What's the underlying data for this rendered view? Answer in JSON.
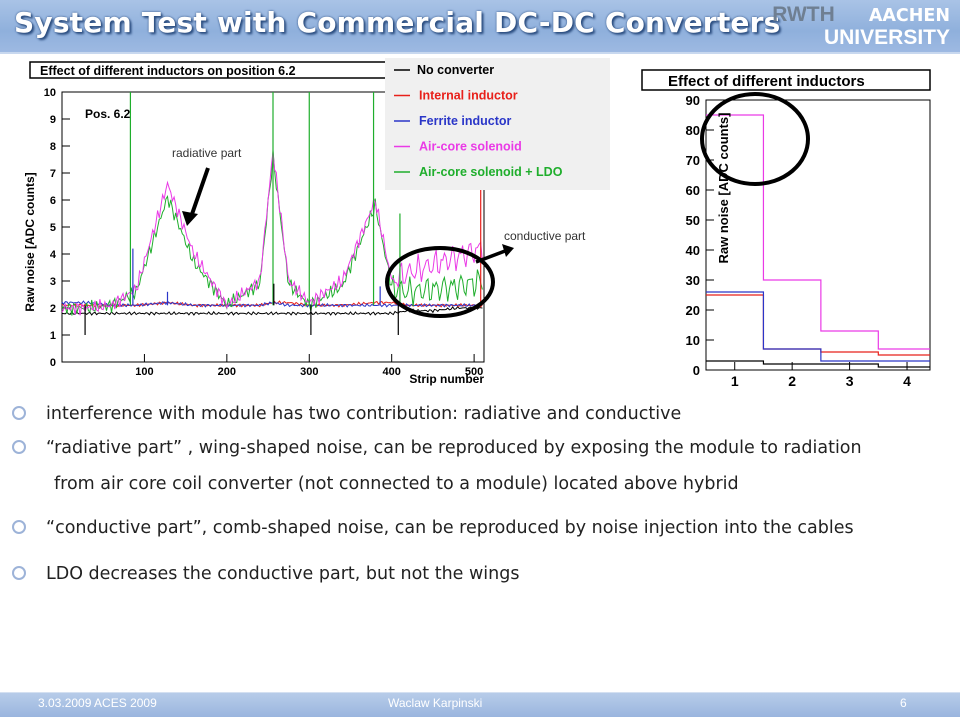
{
  "slide": {
    "title": "System Test with Commercial DC-DC Converters",
    "logo_line1a": "RWTH",
    "logo_line1b": "AACHEN",
    "logo_line2": "UNIVERSITY",
    "footer": {
      "date_event": "3.03.2009 ACES 2009",
      "author": "Waclaw Karpinski",
      "page": "6"
    },
    "bullets": [
      "interference with module has two contribution: radiative and conductive",
      "“radiative part” , wing-shaped noise, can be reproduced by exposing the module to radiation",
      "“conductive part”, comb-shaped noise, can be reproduced by noise injection into the cables",
      "LDO  decreases the conductive part, but not  the wings"
    ],
    "bullet2_cont": "from air core coil converter (not connected to a module) located above hybrid",
    "colors": {
      "title_bar": "#9db9e2",
      "circle": "#000000"
    }
  },
  "chart_data": [
    {
      "type": "line",
      "title": "Effect of different inductors on position 6.2",
      "xlabel": "Strip number",
      "ylabel": "Raw noise [ADC counts]",
      "xlim": [
        0,
        512
      ],
      "ylim": [
        0,
        10
      ],
      "xticks": [
        100,
        200,
        300,
        400,
        500
      ],
      "yticks": [
        0,
        1,
        2,
        3,
        4,
        5,
        6,
        7,
        8,
        9,
        10
      ],
      "annotations": {
        "pos": "Pos. 6.2",
        "radiative": "radiative part",
        "conductive": "conductive part"
      },
      "legend": [
        {
          "name": "No converter",
          "color": "#000000"
        },
        {
          "name": "Internal inductor",
          "color": "#e8201a"
        },
        {
          "name": "Ferrite inductor",
          "color": "#2a36c8"
        },
        {
          "name": "Air-core solenoid",
          "color": "#ea3ae6"
        },
        {
          "name": "Air-core solenoid + LDO",
          "color": "#1fae2c"
        }
      ],
      "legend_placement": "top-right",
      "series_envelopes": {
        "x": [
          0,
          30,
          60,
          90,
          128,
          160,
          200,
          240,
          256,
          275,
          300,
          340,
          380,
          400,
          420,
          450,
          480,
          510
        ],
        "No converter": [
          1.8,
          1.8,
          1.8,
          1.8,
          1.8,
          1.8,
          1.8,
          1.8,
          1.8,
          1.8,
          1.8,
          1.8,
          1.8,
          1.8,
          1.9,
          1.9,
          2.0,
          2.0
        ],
        "Internal inductor": [
          2.1,
          2.1,
          2.1,
          2.1,
          2.2,
          2.1,
          2.1,
          2.1,
          2.2,
          2.2,
          2.1,
          2.1,
          2.2,
          2.2,
          2.1,
          2.1,
          2.1,
          2.1
        ],
        "Ferrite inductor": [
          2.2,
          2.2,
          2.1,
          2.1,
          2.2,
          2.1,
          2.1,
          2.1,
          2.2,
          2.1,
          2.1,
          2.1,
          2.1,
          2.1,
          2.1,
          2.1,
          2.1,
          2.1
        ],
        "Air-core solenoid": [
          2.0,
          2.0,
          2.1,
          2.7,
          6.6,
          4.0,
          2.1,
          3.0,
          7.8,
          3.0,
          2.2,
          3.0,
          6.0,
          3.0,
          3.3,
          3.6,
          3.9,
          4.2
        ],
        "Air-core solenoid + LDO": [
          2.0,
          2.0,
          2.1,
          2.6,
          6.1,
          3.7,
          2.1,
          2.9,
          7.6,
          2.9,
          2.1,
          2.8,
          5.8,
          2.8,
          2.6,
          2.7,
          2.8,
          3.0
        ]
      }
    },
    {
      "type": "line",
      "title": "Effect of different inductors",
      "xlabel": "",
      "ylabel": "Raw noise [ADC counts]",
      "xlim": [
        0.5,
        4.4
      ],
      "ylim": [
        0,
        90
      ],
      "xticks": [
        1,
        2,
        3,
        4
      ],
      "yticks": [
        0,
        10,
        20,
        30,
        40,
        50,
        60,
        70,
        80,
        90
      ],
      "series": [
        {
          "name": "No converter",
          "x": [
            1,
            2,
            3,
            4
          ],
          "values": [
            3,
            2,
            2,
            1
          ]
        },
        {
          "name": "Internal inductor",
          "x": [
            1,
            2,
            3,
            4
          ],
          "values": [
            25,
            7,
            6,
            5
          ]
        },
        {
          "name": "Ferrite inductor",
          "x": [
            1,
            2,
            3,
            4
          ],
          "values": [
            26,
            7,
            3,
            3
          ]
        },
        {
          "name": "Air-core solenoid",
          "x": [
            1,
            2,
            3,
            4
          ],
          "values": [
            85,
            30,
            13,
            7
          ]
        }
      ]
    }
  ]
}
